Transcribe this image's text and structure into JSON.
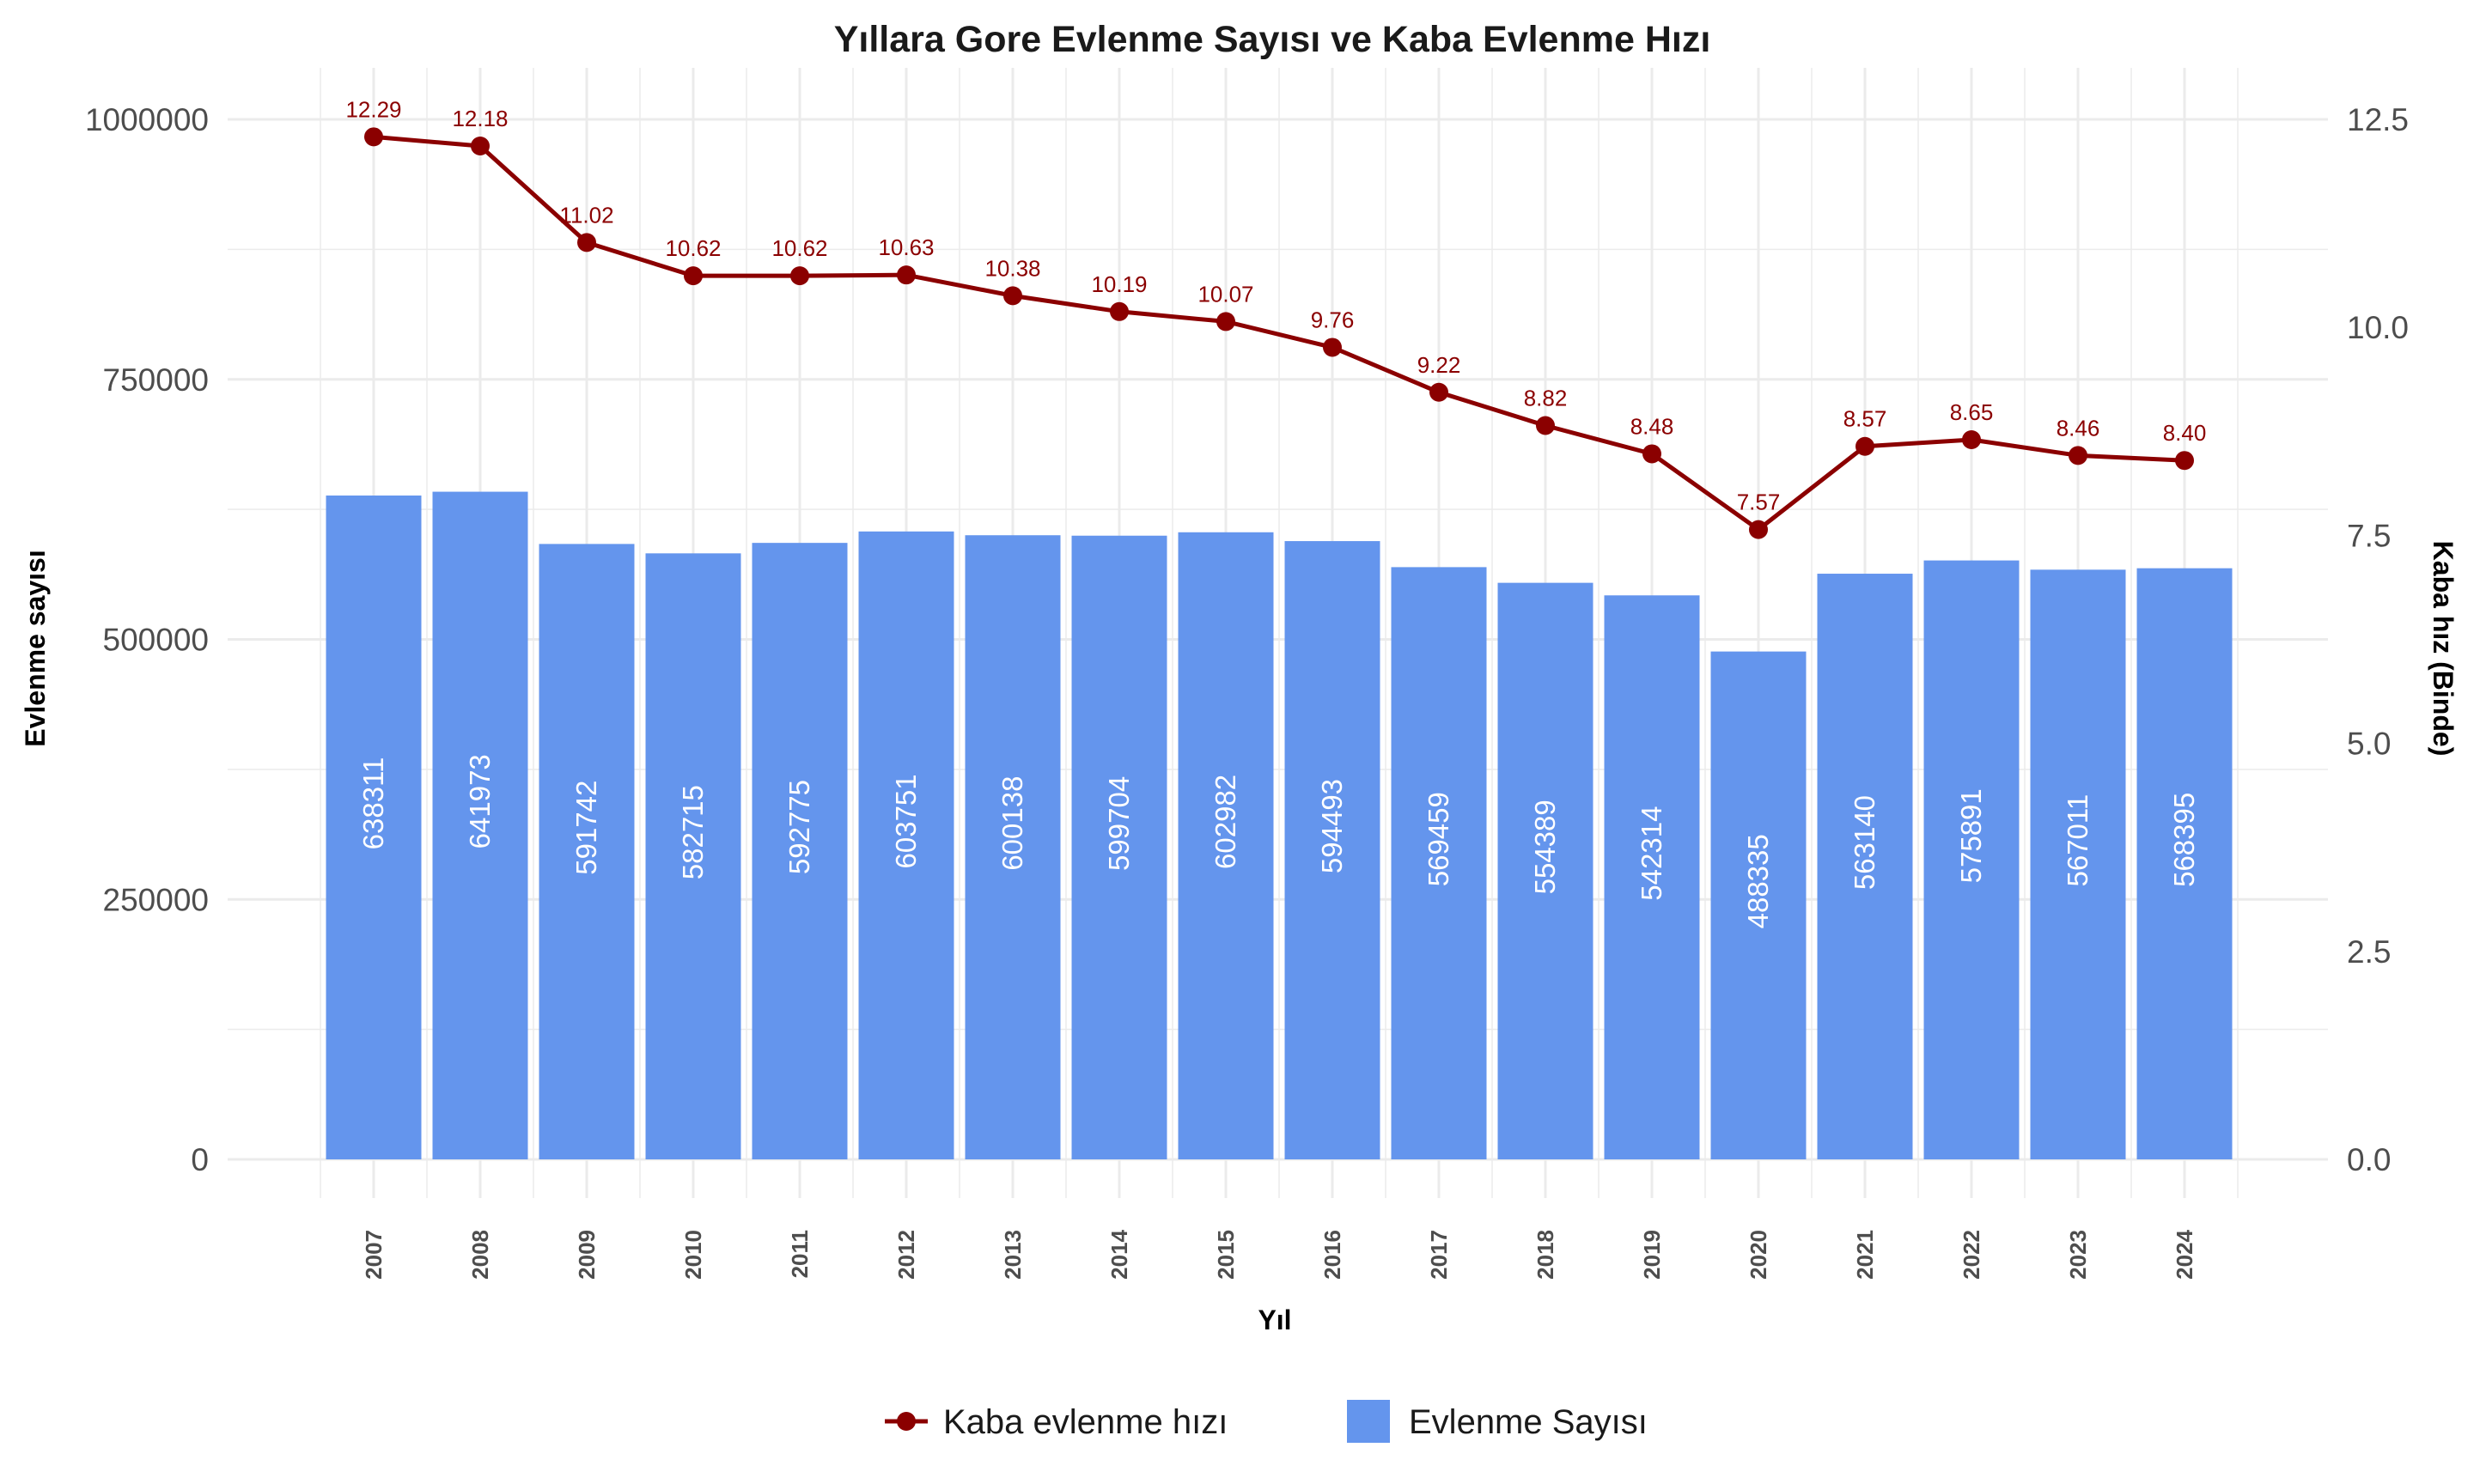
{
  "chart_data": {
    "type": "bar",
    "title": "Yıllara Gore Evlenme Sayısı ve Kaba Evlenme Hızı",
    "xlabel": "Yıl",
    "ylabel": "Evlenme sayısı",
    "y2label": "Kaba hız (Binde)",
    "categories": [
      "2007",
      "2008",
      "2009",
      "2010",
      "2011",
      "2012",
      "2013",
      "2014",
      "2015",
      "2016",
      "2017",
      "2018",
      "2019",
      "2020",
      "2021",
      "2022",
      "2023",
      "2024"
    ],
    "ylim": [
      0,
      1000000
    ],
    "y2lim": [
      0,
      12.5
    ],
    "yticks": [
      "0",
      "250000",
      "500000",
      "750000",
      "1000000"
    ],
    "y2ticks": [
      "0.0",
      "2.5",
      "5.0",
      "7.5",
      "10.0",
      "12.5"
    ],
    "series": [
      {
        "name": "Evlenme Sayısı",
        "type": "bar",
        "axis": "left",
        "color": "#6495ED",
        "values": [
          638311,
          641973,
          591742,
          582715,
          592775,
          603751,
          600138,
          599704,
          602982,
          594493,
          569459,
          554389,
          542314,
          488335,
          563140,
          575891,
          567011,
          568395
        ]
      },
      {
        "name": "Kaba evlenme hızı",
        "type": "line",
        "axis": "right",
        "color": "#8B0000",
        "values": [
          12.29,
          12.18,
          11.02,
          10.62,
          10.62,
          10.63,
          10.38,
          10.19,
          10.07,
          9.76,
          9.22,
          8.82,
          8.48,
          7.57,
          8.57,
          8.65,
          8.46,
          8.4
        ],
        "labels": [
          "12.29",
          "12.18",
          "11.02",
          "10.62",
          "10.62",
          "10.63",
          "10.38",
          "10.19",
          "10.07",
          "9.76",
          "9.22",
          "8.82",
          "8.48",
          "7.57",
          "8.57",
          "8.65",
          "8.46",
          "8.40"
        ]
      }
    ],
    "grid": true,
    "legend_position": "bottom"
  },
  "legend": {
    "line_label": "Kaba evlenme hızı",
    "bar_label": "Evlenme Sayısı"
  }
}
